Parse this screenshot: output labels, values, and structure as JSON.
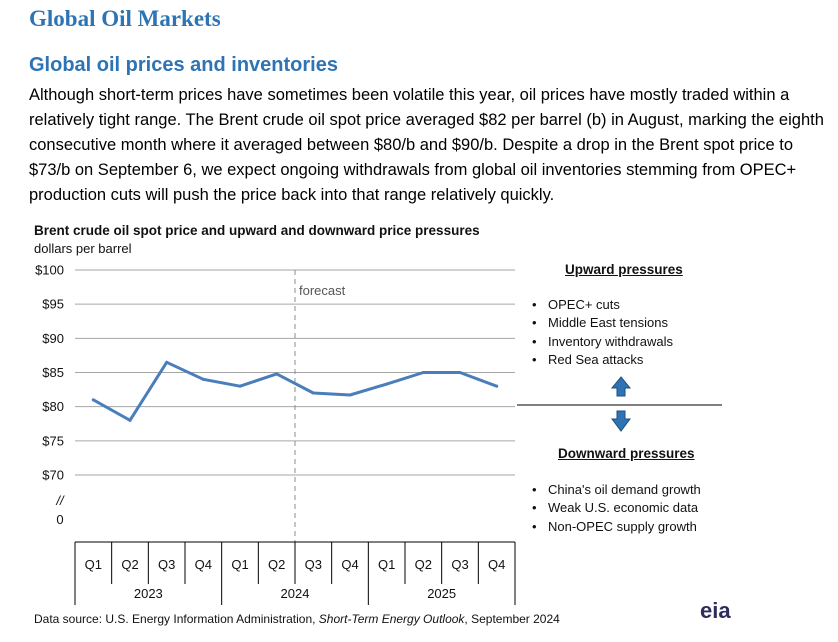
{
  "header": {
    "title": "Global Oil Markets"
  },
  "section": {
    "subtitle": "Global oil prices and inventories",
    "paragraph": "Although short-term prices have sometimes been volatile this year, oil prices have mostly traded within a relatively tight range. The Brent crude oil spot price averaged $82 per barrel (b) in August, marking the eighth consecutive month where it averaged between $80/b and $90/b. Despite a drop in the Brent spot price to $73/b on September 6, we expect ongoing withdrawals from global oil inventories stemming from OPEC+ production cuts will push the price back into that range relatively quickly."
  },
  "chart_data": {
    "type": "line",
    "title": "Brent crude oil spot price and upward and downward price pressures",
    "ylabel": "dollars per barrel",
    "ylim": [
      70,
      100
    ],
    "y_ticks": [
      "$100",
      "$95",
      "$90",
      "$85",
      "$80",
      "$75",
      "$70"
    ],
    "axis_break": {
      "symbol": "//",
      "zero_label": "0"
    },
    "grid": true,
    "categories": [
      "Q1",
      "Q2",
      "Q3",
      "Q4",
      "Q1",
      "Q2",
      "Q3",
      "Q4",
      "Q1",
      "Q2",
      "Q3",
      "Q4"
    ],
    "years": [
      "2023",
      "2024",
      "2025"
    ],
    "series": [
      {
        "name": "Brent crude oil spot price",
        "color": "#4a7ebb",
        "values": [
          81,
          78,
          86.5,
          84,
          83,
          84.8,
          82,
          81.7,
          83.3,
          85,
          85,
          83
        ]
      }
    ],
    "forecast_label": "forecast",
    "forecast_start_index": 5.5
  },
  "pressures": {
    "upward": {
      "heading": "Upward pressures",
      "items": [
        "OPEC+ cuts",
        "Middle East tensions",
        "Inventory withdrawals",
        "Red Sea attacks"
      ]
    },
    "downward": {
      "heading": "Downward pressures",
      "items": [
        "China's oil demand growth",
        "Weak U.S. economic data",
        "Non-OPEC supply growth"
      ]
    },
    "arrow_color": "#2e74b5"
  },
  "footer": {
    "source_prefix": "Data source: U.S. Energy Information Administration, ",
    "source_italic": "Short-Term Energy Outlook",
    "source_suffix": ", September 2024",
    "logo": "eia"
  }
}
